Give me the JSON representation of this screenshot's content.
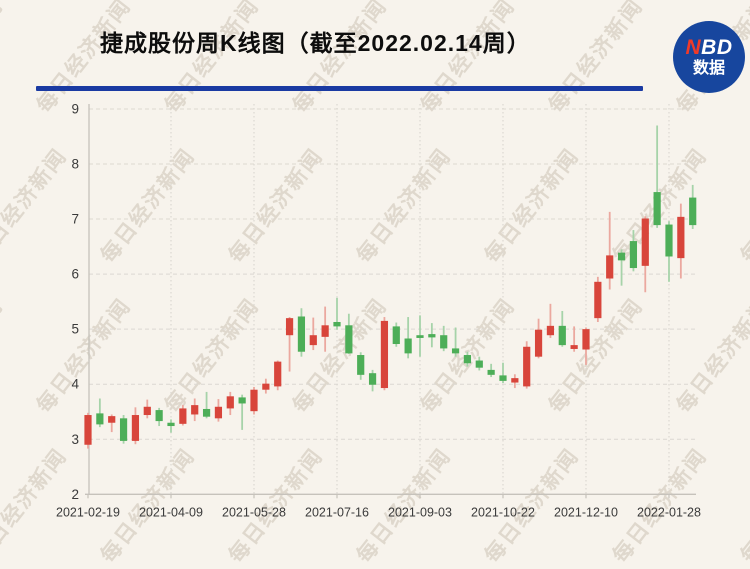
{
  "header": {
    "title": "捷成股份周K线图（截至2022.02.14周）",
    "underline_color": "#1a3aa2",
    "logo": {
      "n": "N",
      "bd": "BD",
      "line2": "数据",
      "bg_color": "#17469e",
      "n_color": "#f03a28"
    }
  },
  "watermark": {
    "text": "每日经济新闻"
  },
  "chart_data": {
    "type": "candlestick",
    "title": "捷成股份周K线图（截至2022.02.14周）",
    "xlabel": "",
    "ylabel": "",
    "ylim": [
      2,
      9
    ],
    "y_ticks": [
      2,
      3,
      4,
      5,
      6,
      7,
      8,
      9
    ],
    "x_tick_labels": [
      "2021-02-19",
      "2021-04-09",
      "2021-05-28",
      "2021-07-16",
      "2021-09-03",
      "2021-10-22",
      "2021-12-10",
      "2022-01-28"
    ],
    "x_tick_weeks": [
      0,
      7,
      14,
      21,
      28,
      35,
      42,
      49
    ],
    "grid": "dashed horizontal + dotted vertical",
    "legend": "none",
    "up_color": "#d8453b",
    "down_color": "#4dae58",
    "up_wick_color": "#eba89f",
    "down_wick_color": "#a6d3a9",
    "candle_format": [
      "open",
      "high",
      "low",
      "close"
    ],
    "candles": [
      [
        2.9,
        3.48,
        2.83,
        3.44
      ],
      [
        3.47,
        3.74,
        3.22,
        3.27
      ],
      [
        3.3,
        3.45,
        3.13,
        3.42
      ],
      [
        3.38,
        3.44,
        2.92,
        2.97
      ],
      [
        2.97,
        3.58,
        2.91,
        3.44
      ],
      [
        3.44,
        3.72,
        3.38,
        3.59
      ],
      [
        3.53,
        3.57,
        3.24,
        3.33
      ],
      [
        3.3,
        3.36,
        3.12,
        3.24
      ],
      [
        3.28,
        3.62,
        3.25,
        3.56
      ],
      [
        3.45,
        3.74,
        3.33,
        3.62
      ],
      [
        3.55,
        3.86,
        3.38,
        3.41
      ],
      [
        3.38,
        3.73,
        3.32,
        3.59
      ],
      [
        3.56,
        3.86,
        3.44,
        3.78
      ],
      [
        3.76,
        3.81,
        3.17,
        3.65
      ],
      [
        3.51,
        3.95,
        3.45,
        3.9
      ],
      [
        3.9,
        4.1,
        3.83,
        4.01
      ],
      [
        3.96,
        4.43,
        3.89,
        4.41
      ],
      [
        4.89,
        5.22,
        4.23,
        5.2
      ],
      [
        5.23,
        5.38,
        4.5,
        4.59
      ],
      [
        4.71,
        5.21,
        4.62,
        4.89
      ],
      [
        4.86,
        5.41,
        4.59,
        5.07
      ],
      [
        5.13,
        5.57,
        4.99,
        5.05
      ],
      [
        5.07,
        5.28,
        4.55,
        4.56
      ],
      [
        4.53,
        4.58,
        4.08,
        4.17
      ],
      [
        4.2,
        4.26,
        3.87,
        3.99
      ],
      [
        3.93,
        5.22,
        3.89,
        5.15
      ],
      [
        5.05,
        5.12,
        4.68,
        4.73
      ],
      [
        4.83,
        5.22,
        4.47,
        4.56
      ],
      [
        4.89,
        5.25,
        4.5,
        4.84
      ],
      [
        4.91,
        5.11,
        4.67,
        4.85
      ],
      [
        4.89,
        5.06,
        4.6,
        4.65
      ],
      [
        4.65,
        5.03,
        4.5,
        4.56
      ],
      [
        4.53,
        4.59,
        4.32,
        4.38
      ],
      [
        4.43,
        4.5,
        4.25,
        4.3
      ],
      [
        4.26,
        4.37,
        4.13,
        4.17
      ],
      [
        4.16,
        4.39,
        4.02,
        4.06
      ],
      [
        4.03,
        4.18,
        3.93,
        4.11
      ],
      [
        3.96,
        4.78,
        3.92,
        4.68
      ],
      [
        4.5,
        5.19,
        4.47,
        4.99
      ],
      [
        4.89,
        5.46,
        4.84,
        5.06
      ],
      [
        5.06,
        5.33,
        4.68,
        4.71
      ],
      [
        4.64,
        5.05,
        4.59,
        4.71
      ],
      [
        4.63,
        5.03,
        4.35,
        5.0
      ],
      [
        5.2,
        5.95,
        5.13,
        5.86
      ],
      [
        5.92,
        7.13,
        5.72,
        6.34
      ],
      [
        6.39,
        6.45,
        5.79,
        6.25
      ],
      [
        6.6,
        6.8,
        6.05,
        6.11
      ],
      [
        6.15,
        7.05,
        5.67,
        7.01
      ],
      [
        7.49,
        8.7,
        6.84,
        6.89
      ],
      [
        6.9,
        6.96,
        5.86,
        6.32
      ],
      [
        6.29,
        7.28,
        5.92,
        7.04
      ],
      [
        7.39,
        7.62,
        6.82,
        6.89
      ]
    ]
  }
}
